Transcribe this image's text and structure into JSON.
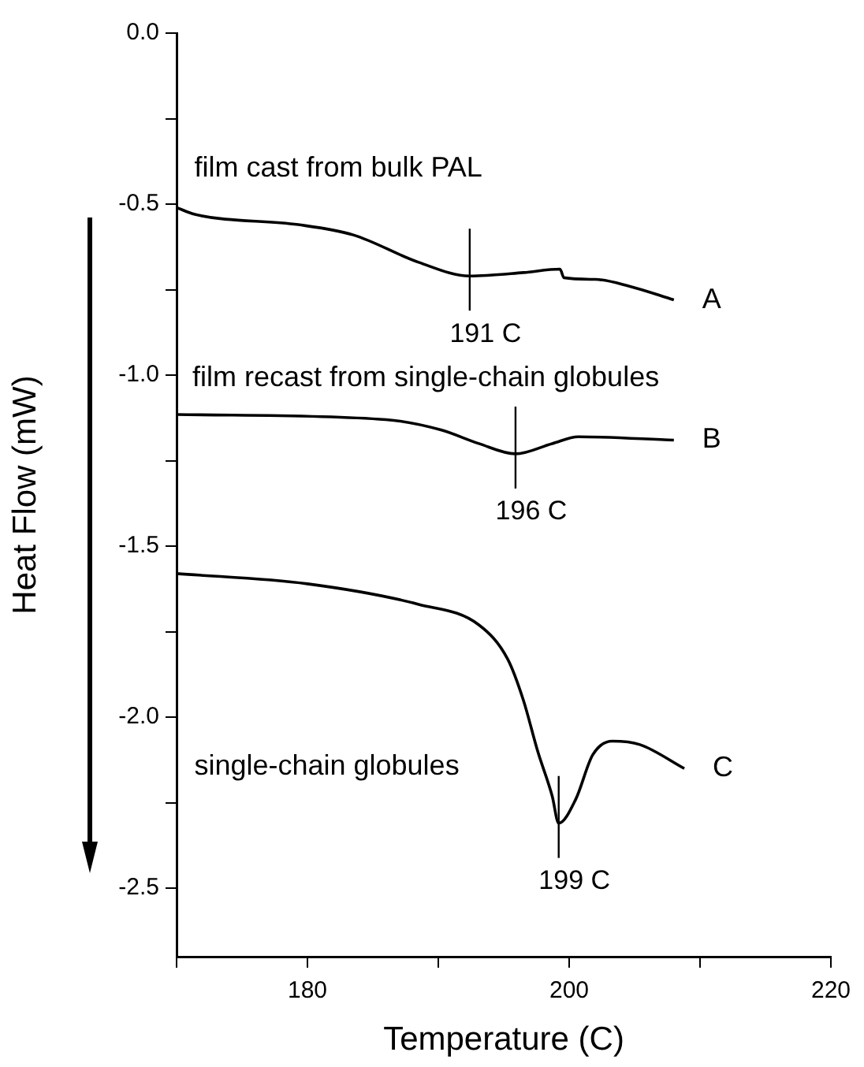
{
  "chart_data": {
    "type": "line",
    "xlabel": "Temperature (C)",
    "ylabel": "Heat Flow (mW)",
    "xlim": [
      170,
      220
    ],
    "xticks": [
      {
        "value": 170,
        "label": null
      },
      180,
      {
        "value": 190,
        "label": null
      },
      200,
      {
        "value": 210,
        "label": null
      },
      220
    ],
    "ylim": [
      -2.7,
      0
    ],
    "yticks": [
      {
        "value": 0,
        "label": "0.0"
      },
      {
        "value": -0.25,
        "label": null
      },
      -0.5,
      {
        "value": -0.75,
        "label": null
      },
      {
        "value": -1,
        "label": "-1.0"
      },
      {
        "value": -1.25,
        "label": null
      },
      -1.5,
      {
        "value": -1.75,
        "label": null
      },
      {
        "value": -2,
        "label": "-2.0"
      },
      {
        "value": -2.25,
        "label": null
      },
      -2.5
    ],
    "grid": false,
    "legend": false,
    "marker": "none",
    "line_style": "solid",
    "series": [
      {
        "name": "A",
        "color": "#000000",
        "x": [
          170,
          171.4,
          179.3,
          183.5,
          188.5,
          192.4,
          196.5,
          199.3,
          199.6,
          202,
          204.6,
          208
        ],
        "values": [
          -0.51,
          -0.53,
          -0.56,
          -0.59,
          -0.67,
          -0.71,
          -0.7,
          -0.69,
          -0.715,
          -0.72,
          -0.74,
          -0.78
        ]
      },
      {
        "name": "B",
        "color": "#000000",
        "x": [
          170,
          186,
          190.2,
          193.1,
          195.9,
          198.7,
          200.7,
          208
        ],
        "values": [
          -1.115,
          -1.13,
          -1.16,
          -1.2,
          -1.23,
          -1.2,
          -1.18,
          -1.19
        ]
      },
      {
        "name": "C",
        "color": "#000000",
        "x": [
          170,
          180,
          188.5,
          193.1,
          195.3,
          196.5,
          197.6,
          198.7,
          199.2,
          200.5,
          201.8,
          203.3,
          205.4,
          208.8
        ],
        "values": [
          -1.58,
          -1.61,
          -1.67,
          -1.73,
          -1.83,
          -1.95,
          -2.1,
          -2.23,
          -2.31,
          -2.24,
          -2.11,
          -2.07,
          -2.08,
          -2.15
        ]
      }
    ],
    "annotations": [
      "film cast from bulk PAL",
      "film recast from single-chain globules",
      "single-chain globules",
      {
        "text": "191 C",
        "x": 192.4,
        "y": -0.71
      },
      {
        "text": "196 C",
        "x": 195.9,
        "y": -1.23
      },
      {
        "text": "199 C",
        "x": 199.2,
        "y": -2.31
      }
    ]
  }
}
